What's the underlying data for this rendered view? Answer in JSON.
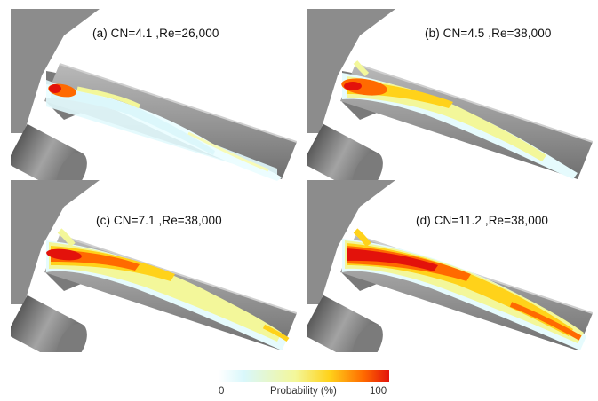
{
  "panels": [
    {
      "label": "(a) CN=4.1 ,Re=26,000",
      "plume": "weak"
    },
    {
      "label": "(b) CN=4.5 ,Re=38,000",
      "plume": "medium"
    },
    {
      "label": "(c) CN=7.1 ,Re=38,000",
      "plume": "strong"
    },
    {
      "label": "(d) CN=11.2 ,Re=38,000",
      "plume": "strongest"
    }
  ],
  "colorbar": {
    "min_label": "0",
    "title": "Probability (%)",
    "max_label": "100",
    "colors": [
      "#ffffff",
      "#d9f7fb",
      "#f3f79a",
      "#ffd21a",
      "#ff6a00",
      "#e3120b"
    ]
  }
}
